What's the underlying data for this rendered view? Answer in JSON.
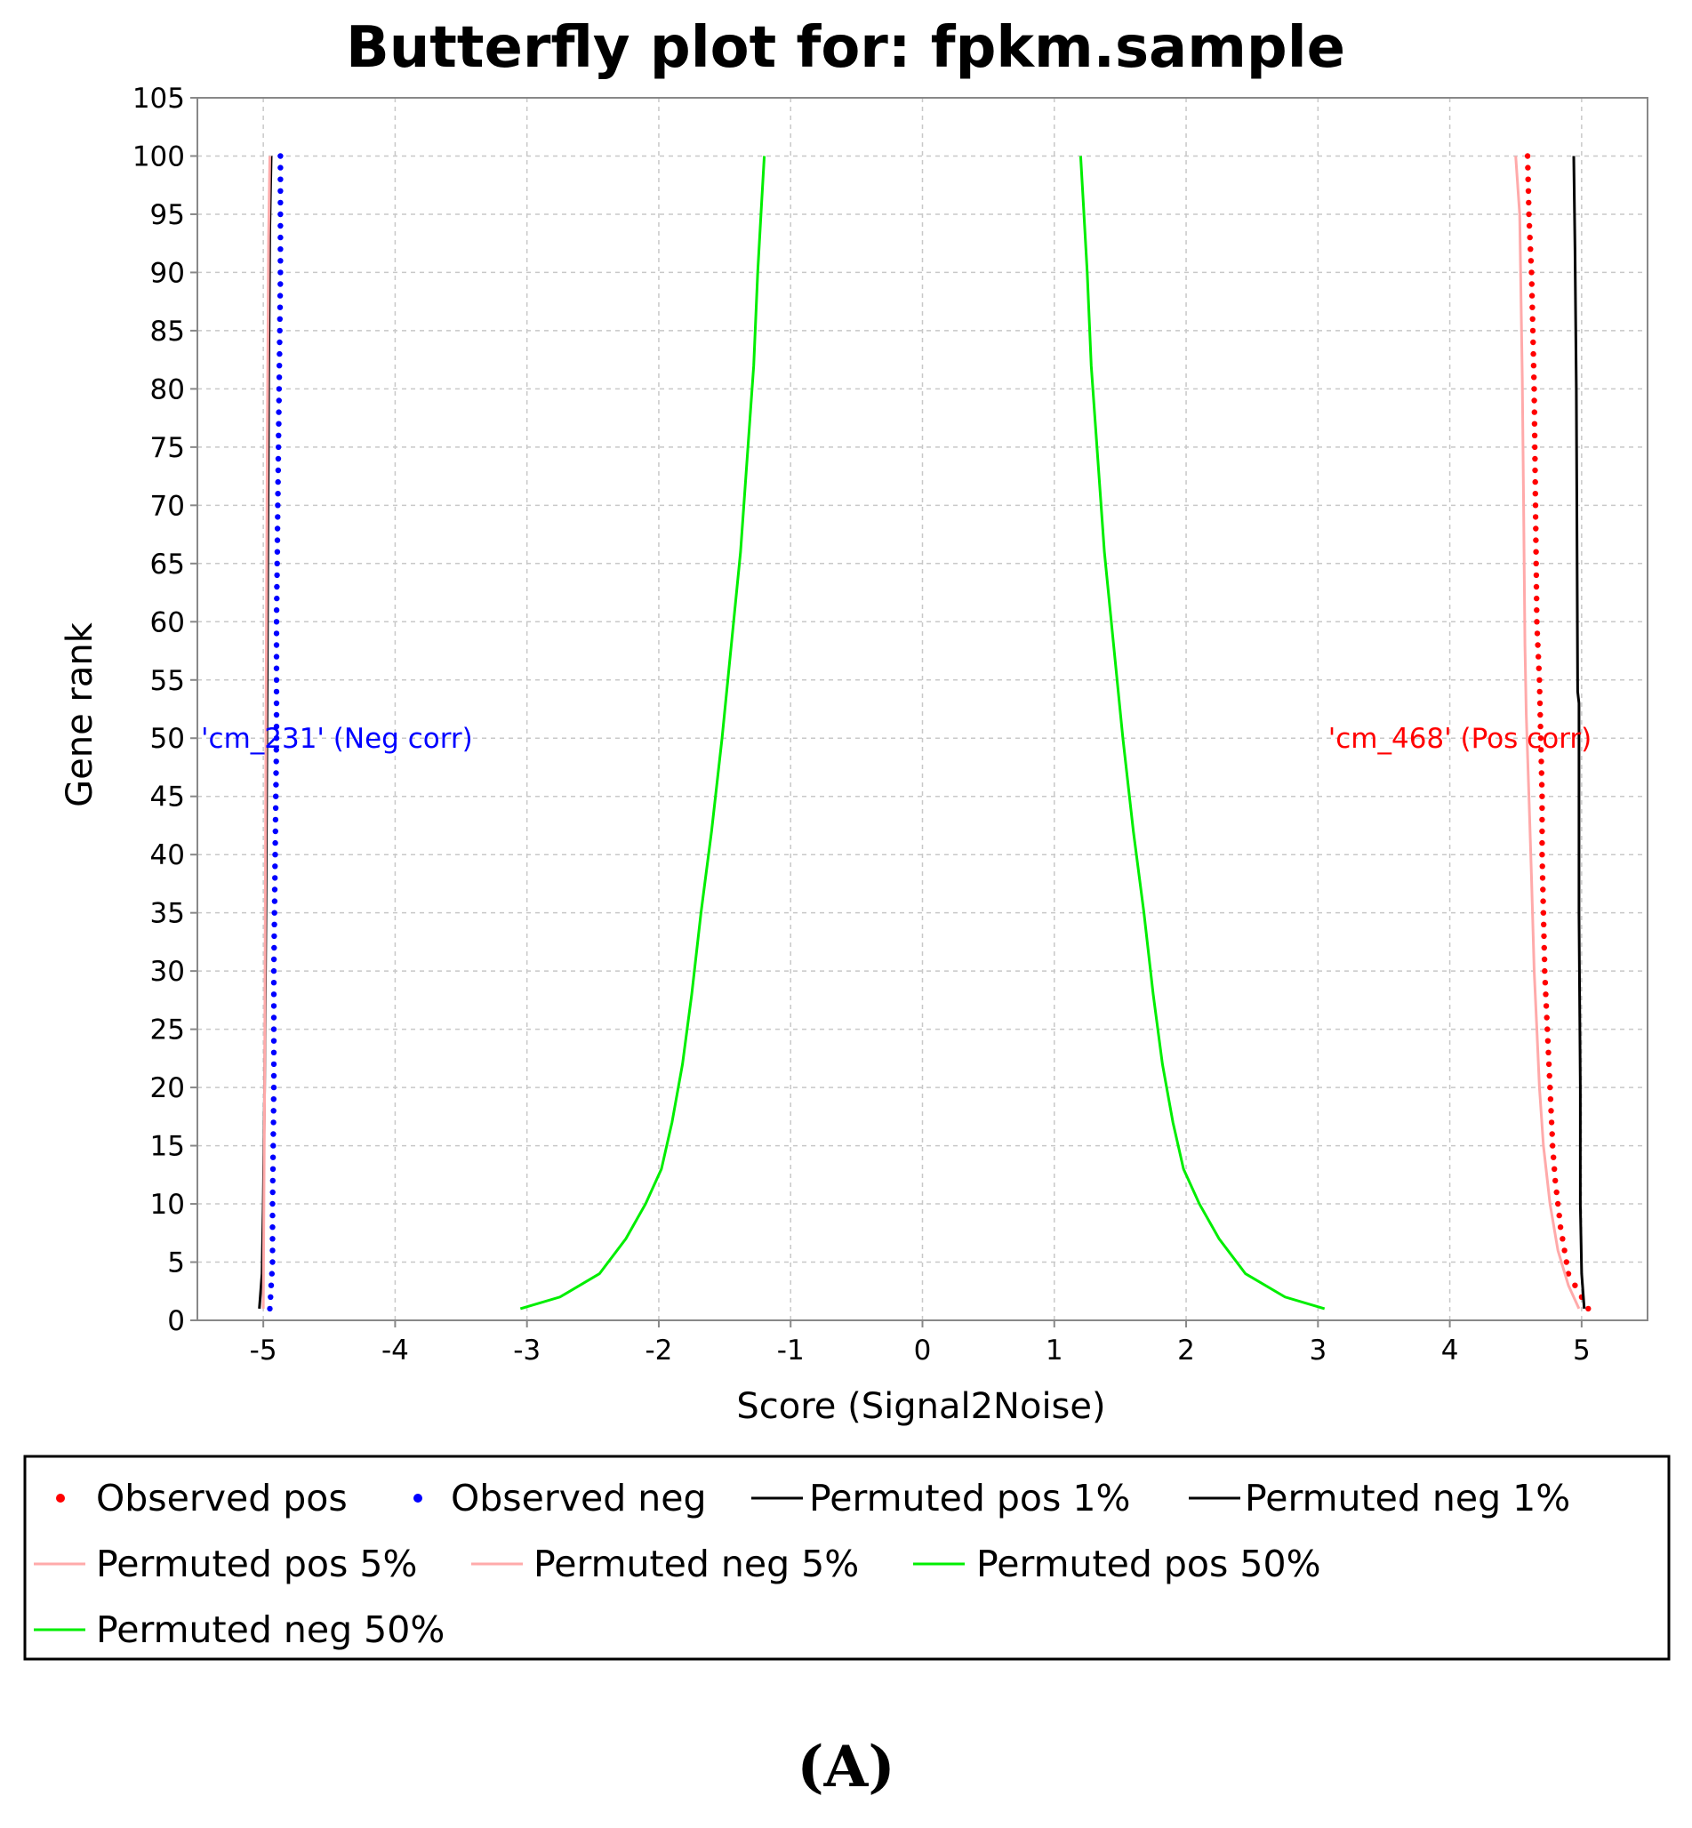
{
  "chart_data": {
    "type": "line",
    "title": "Butterfly plot for: fpkm.sample",
    "xlabel": "Score (Signal2Noise)",
    "ylabel": "Gene rank",
    "xlim": [
      -5.5,
      5.5
    ],
    "ylim": [
      0,
      105
    ],
    "x_ticks": [
      -5,
      -4,
      -3,
      -2,
      -1,
      0,
      1,
      2,
      3,
      4,
      5
    ],
    "y_ticks": [
      0,
      5,
      10,
      15,
      20,
      25,
      30,
      35,
      40,
      45,
      50,
      55,
      60,
      65,
      70,
      75,
      80,
      85,
      90,
      95,
      100,
      105
    ],
    "grid": true,
    "legend_position": "bottom",
    "annotations": [
      {
        "text": "'cm_231' (Neg corr)",
        "x": -5.5,
        "y": 50,
        "color": "#0000ff"
      },
      {
        "text": "'cm_468' (Pos corr)",
        "x": 3.05,
        "y": 50,
        "color": "#ff0000"
      }
    ],
    "series": [
      {
        "name": "Observed pos",
        "style": "dots",
        "color": "#ff0000",
        "x": [
          5.05,
          5.0,
          4.95,
          4.9,
          4.87,
          4.84,
          4.82,
          4.8,
          4.78,
          4.76,
          4.74,
          4.72,
          4.71,
          4.7,
          4.7,
          4.69,
          4.68,
          4.66,
          4.65,
          4.64,
          4.62,
          4.6,
          4.59
        ],
        "y": [
          1,
          2,
          3,
          4,
          6,
          8,
          10,
          12,
          15,
          20,
          25,
          30,
          35,
          40,
          45,
          50,
          55,
          60,
          70,
          80,
          90,
          95,
          100
        ]
      },
      {
        "name": "Observed neg",
        "style": "dots",
        "color": "#0000ff",
        "x": [
          -4.95,
          -4.94,
          -4.93,
          -4.93,
          -4.92,
          -4.92,
          -4.91,
          -4.9,
          -4.9,
          -4.89,
          -4.88,
          -4.87,
          -4.87
        ],
        "y": [
          1,
          3,
          5,
          10,
          20,
          30,
          40,
          50,
          60,
          70,
          80,
          90,
          100
        ]
      },
      {
        "name": "Permuted pos 1%",
        "style": "line",
        "color": "#000000",
        "x": [
          5.02,
          5.0,
          4.99,
          4.99,
          4.98,
          4.98,
          4.97,
          4.96,
          4.95,
          4.94
        ],
        "y": [
          1,
          4,
          10,
          20,
          35,
          53,
          54,
          80,
          92,
          100
        ]
      },
      {
        "name": "Permuted neg 1%",
        "style": "line",
        "color": "#000000",
        "x": [
          -5.03,
          -5.01,
          -5.0,
          -4.99,
          -4.98,
          -4.97,
          -4.97,
          -4.96,
          -4.95,
          -4.94
        ],
        "y": [
          1,
          4,
          10,
          20,
          35,
          56,
          57,
          80,
          94,
          100
        ]
      },
      {
        "name": "Permuted pos 5%",
        "style": "line",
        "color": "#ffaaaa",
        "x": [
          4.98,
          4.9,
          4.82,
          4.76,
          4.71,
          4.68,
          4.66,
          4.64,
          4.62,
          4.6,
          4.58,
          4.57,
          4.56,
          4.55,
          4.53,
          4.5
        ],
        "y": [
          1,
          3,
          6,
          10,
          15,
          20,
          25,
          30,
          38,
          45,
          52,
          58,
          70,
          81,
          95,
          100
        ]
      },
      {
        "name": "Permuted neg 5%",
        "style": "line",
        "color": "#ffaaaa",
        "x": [
          -5.0,
          -4.99,
          -4.98,
          -4.97,
          -4.96,
          -4.95
        ],
        "y": [
          1,
          20,
          50,
          75,
          93,
          100
        ]
      },
      {
        "name": "Permuted pos 50%",
        "style": "line",
        "color": "#00ee00",
        "x": [
          3.05,
          2.75,
          2.45,
          2.25,
          2.1,
          1.98,
          1.9,
          1.82,
          1.75,
          1.68,
          1.6,
          1.52,
          1.45,
          1.38,
          1.33,
          1.28,
          1.25,
          1.22,
          1.2
        ],
        "y": [
          1,
          2,
          4,
          7,
          10,
          13,
          17,
          22,
          28,
          35,
          42,
          50,
          58,
          66,
          74,
          82,
          90,
          96,
          100
        ]
      },
      {
        "name": "Permuted neg 50%",
        "style": "line",
        "color": "#00ee00",
        "x": [
          -3.05,
          -2.75,
          -2.45,
          -2.25,
          -2.1,
          -1.98,
          -1.9,
          -1.82,
          -1.75,
          -1.68,
          -1.6,
          -1.52,
          -1.45,
          -1.38,
          -1.33,
          -1.28,
          -1.25,
          -1.22,
          -1.2
        ],
        "y": [
          1,
          2,
          4,
          7,
          10,
          13,
          17,
          22,
          28,
          35,
          42,
          50,
          58,
          66,
          74,
          82,
          90,
          96,
          100
        ]
      }
    ]
  },
  "panel_label": "(A)"
}
